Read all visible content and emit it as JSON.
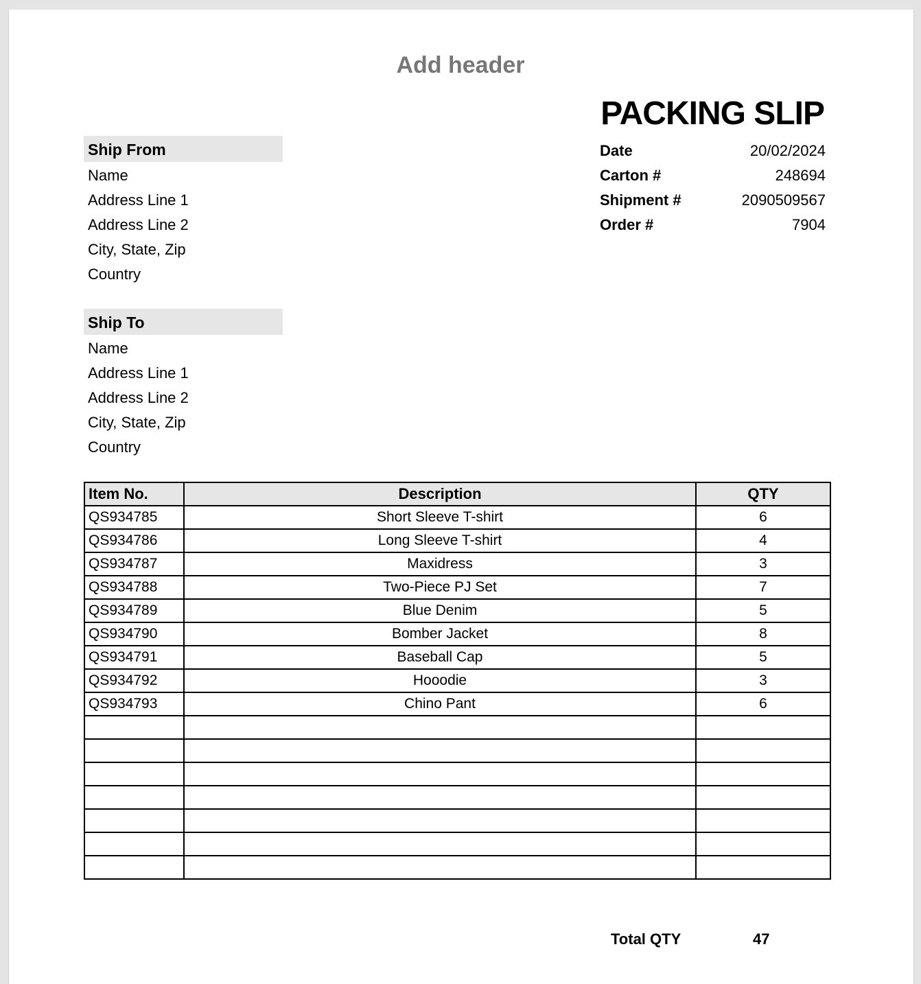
{
  "header_placeholder": "Add header",
  "title": "PACKING SLIP",
  "ship_from": {
    "heading": "Ship From",
    "lines": [
      "Name",
      "Address Line 1",
      "Address Line 2",
      "City, State, Zip",
      "Country"
    ]
  },
  "ship_to": {
    "heading": "Ship To",
    "lines": [
      "Name",
      "Address Line 1",
      "Address Line 2",
      "City, State, Zip",
      "Country"
    ]
  },
  "meta": [
    {
      "label": "Date",
      "value": "20/02/2024"
    },
    {
      "label": "Carton #",
      "value": "248694"
    },
    {
      "label": "Shipment #",
      "value": "2090509567"
    },
    {
      "label": "Order #",
      "value": "7904"
    }
  ],
  "table": {
    "headers": [
      "Item No.",
      "Description",
      "QTY"
    ],
    "rows": [
      [
        "QS934785",
        "Short Sleeve T-shirt",
        "6"
      ],
      [
        "QS934786",
        "Long Sleeve T-shirt",
        "4"
      ],
      [
        "QS934787",
        "Maxidress",
        "3"
      ],
      [
        "QS934788",
        "Two-Piece PJ Set",
        "7"
      ],
      [
        "QS934789",
        "Blue Denim",
        "5"
      ],
      [
        "QS934790",
        "Bomber Jacket",
        "8"
      ],
      [
        "QS934791",
        "Baseball Cap",
        "5"
      ],
      [
        "QS934792",
        "Hooodie",
        "3"
      ],
      [
        "QS934793",
        "Chino Pant",
        "6"
      ],
      [
        "",
        "",
        ""
      ],
      [
        "",
        "",
        ""
      ],
      [
        "",
        "",
        ""
      ],
      [
        "",
        "",
        ""
      ],
      [
        "",
        "",
        ""
      ],
      [
        "",
        "",
        ""
      ],
      [
        "",
        "",
        ""
      ]
    ]
  },
  "total": {
    "label": "Total QTY",
    "value": "47"
  }
}
